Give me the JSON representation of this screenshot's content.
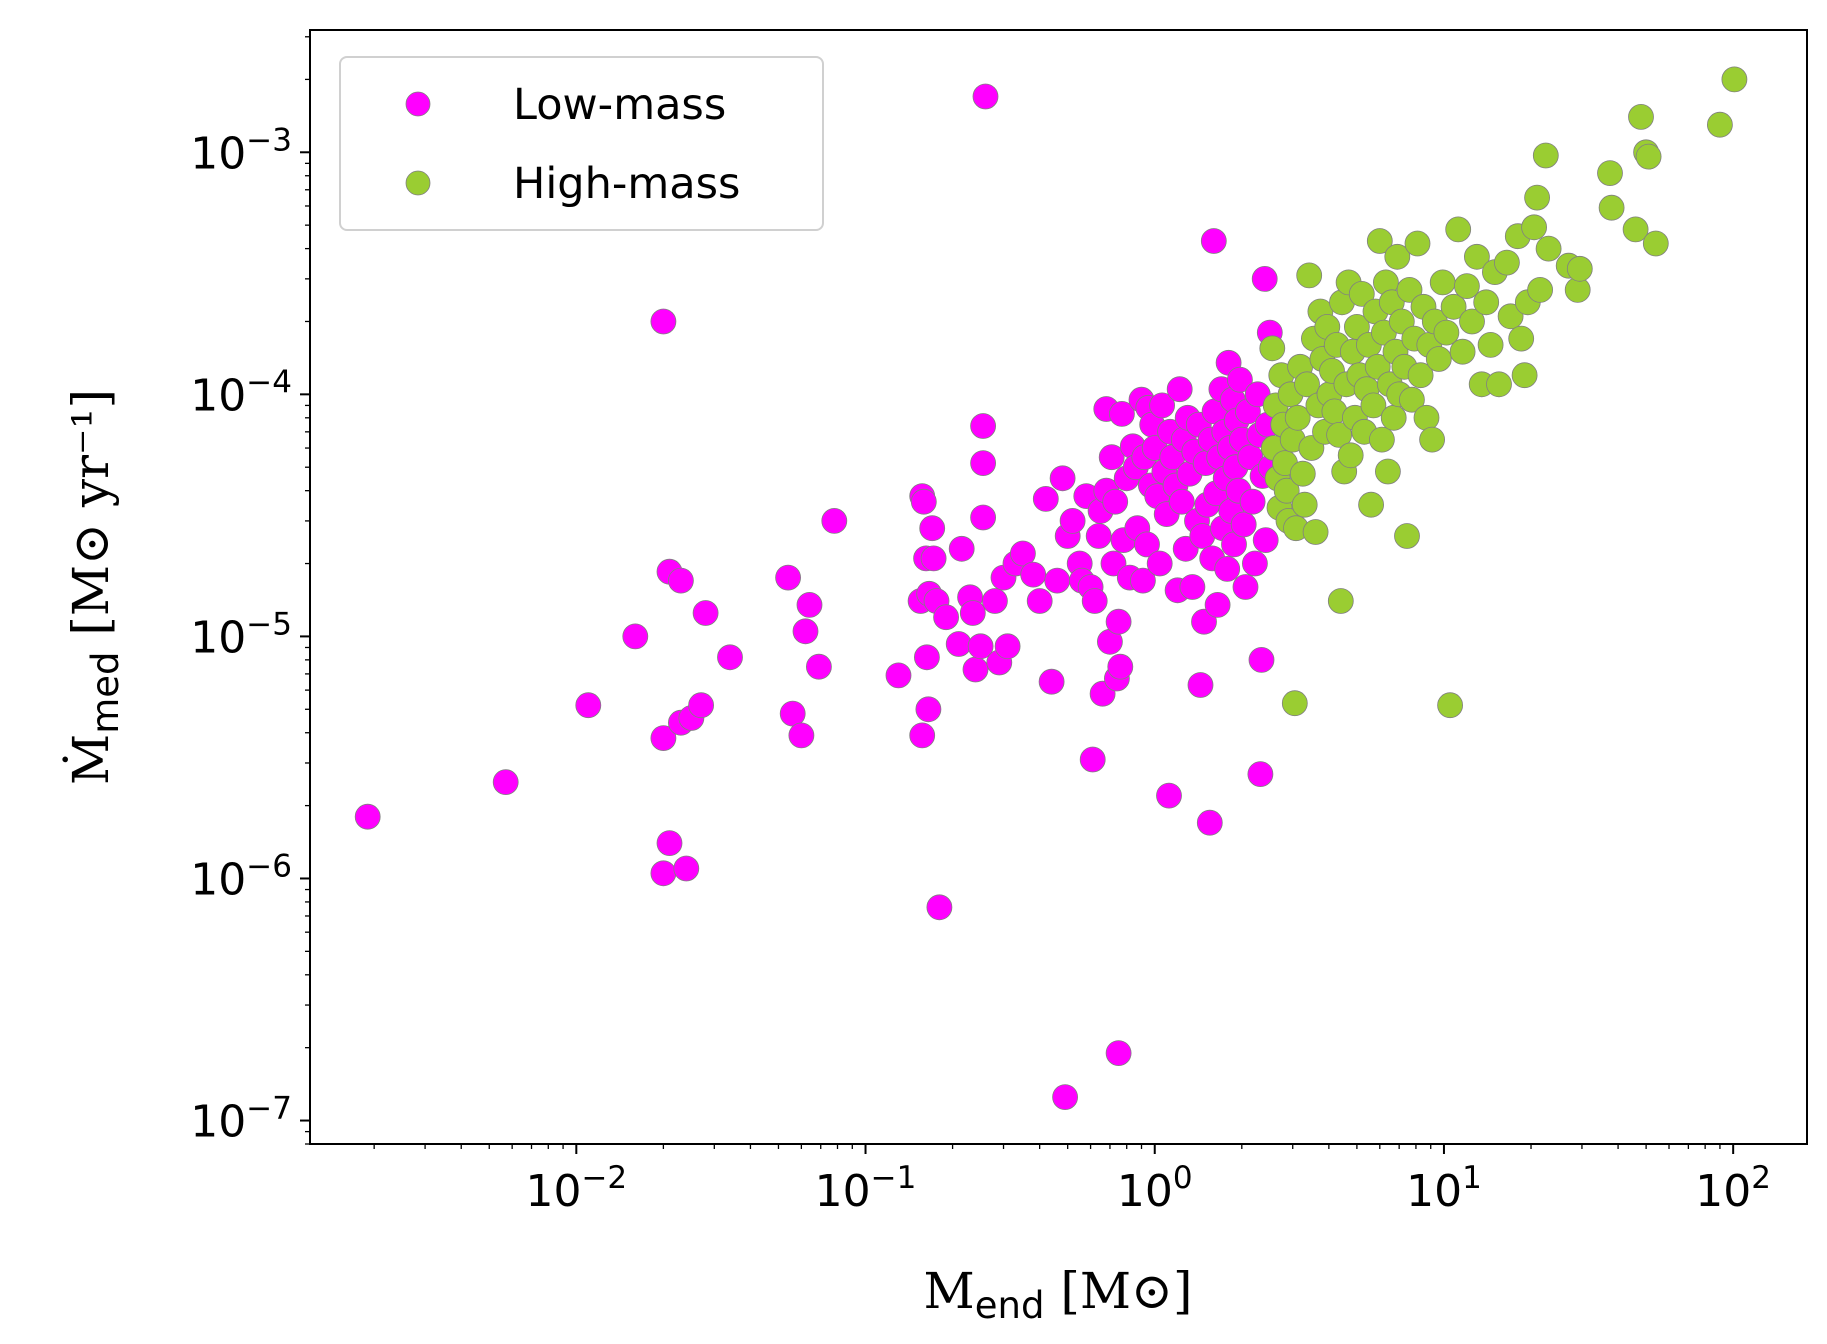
{
  "chart_data": {
    "type": "scatter",
    "x_scale": "log",
    "y_scale": "log",
    "xlim": [
      0.0012,
      180
    ],
    "ylim": [
      8e-08,
      0.0032
    ],
    "xlabel": {
      "main": "M",
      "sub": "end",
      "unit": " [M⊙]"
    },
    "ylabel": {
      "main": "Ṁ",
      "sub": "med",
      "unit": " [M⊙ yr⁻¹]"
    },
    "x_ticks": [
      {
        "base": "10",
        "exp": "−2",
        "value": 0.01
      },
      {
        "base": "10",
        "exp": "−1",
        "value": 0.1
      },
      {
        "base": "10",
        "exp": "0",
        "value": 1
      },
      {
        "base": "10",
        "exp": "1",
        "value": 10
      },
      {
        "base": "10",
        "exp": "2",
        "value": 100
      }
    ],
    "y_ticks": [
      {
        "base": "10",
        "exp": "−7",
        "value": 1e-07
      },
      {
        "base": "10",
        "exp": "−6",
        "value": 1e-06
      },
      {
        "base": "10",
        "exp": "−5",
        "value": 1e-05
      },
      {
        "base": "10",
        "exp": "−4",
        "value": 0.0001
      },
      {
        "base": "10",
        "exp": "−3",
        "value": 0.001
      }
    ],
    "grid": false,
    "legend_position": "top-left",
    "series": [
      {
        "name": "Low-mass",
        "color": "#ff00ff",
        "points": [
          [
            0.0019,
            1.8e-06
          ],
          [
            0.0057,
            2.5e-06
          ],
          [
            0.011,
            5.2e-06
          ],
          [
            0.016,
            1e-05
          ],
          [
            0.02,
            0.0002
          ],
          [
            0.02,
            3.8e-06
          ],
          [
            0.02,
            1.05e-06
          ],
          [
            0.021,
            1.4e-06
          ],
          [
            0.021,
            1.85e-05
          ],
          [
            0.023,
            1.7e-05
          ],
          [
            0.023,
            4.4e-06
          ],
          [
            0.024,
            1.1e-06
          ],
          [
            0.025,
            4.6e-06
          ],
          [
            0.027,
            5.2e-06
          ],
          [
            0.028,
            1.25e-05
          ],
          [
            0.034,
            8.2e-06
          ],
          [
            0.054,
            1.75e-05
          ],
          [
            0.056,
            4.8e-06
          ],
          [
            0.06,
            3.9e-06
          ],
          [
            0.062,
            1.05e-05
          ],
          [
            0.064,
            1.35e-05
          ],
          [
            0.069,
            7.5e-06
          ],
          [
            0.078,
            3e-05
          ],
          [
            0.13,
            6.9e-06
          ],
          [
            0.155,
            1.4e-05
          ],
          [
            0.157,
            3.8e-05
          ],
          [
            0.157,
            3.9e-06
          ],
          [
            0.159,
            3.6e-05
          ],
          [
            0.162,
            2.1e-05
          ],
          [
            0.163,
            8.2e-06
          ],
          [
            0.165,
            5e-06
          ],
          [
            0.166,
            1.5e-05
          ],
          [
            0.17,
            2.8e-05
          ],
          [
            0.172,
            2.1e-05
          ],
          [
            0.176,
            1.4e-05
          ],
          [
            0.18,
            7.6e-07
          ],
          [
            0.19,
            1.2e-05
          ],
          [
            0.21,
            9.3e-06
          ],
          [
            0.215,
            2.3e-05
          ],
          [
            0.23,
            1.45e-05
          ],
          [
            0.235,
            1.25e-05
          ],
          [
            0.24,
            7.3e-06
          ],
          [
            0.25,
            9.1e-06
          ],
          [
            0.255,
            3.1e-05
          ],
          [
            0.255,
            5.2e-05
          ],
          [
            0.255,
            7.4e-05
          ],
          [
            0.26,
            0.0017
          ],
          [
            0.28,
            1.4e-05
          ],
          [
            0.29,
            7.8e-06
          ],
          [
            0.3,
            1.75e-05
          ],
          [
            0.31,
            9.1e-06
          ],
          [
            0.33,
            2e-05
          ],
          [
            0.35,
            2.2e-05
          ],
          [
            0.38,
            1.8e-05
          ],
          [
            0.4,
            1.4e-05
          ],
          [
            0.42,
            3.7e-05
          ],
          [
            0.44,
            6.5e-06
          ],
          [
            0.46,
            1.7e-05
          ],
          [
            0.48,
            4.5e-05
          ],
          [
            0.49,
            1.25e-07
          ],
          [
            0.5,
            2.6e-05
          ],
          [
            0.52,
            3e-05
          ],
          [
            0.55,
            2e-05
          ],
          [
            0.56,
            1.7e-05
          ],
          [
            0.58,
            3.8e-05
          ],
          [
            0.6,
            1.6e-05
          ],
          [
            0.61,
            3.1e-06
          ],
          [
            0.62,
            1.4e-05
          ],
          [
            0.64,
            2.6e-05
          ],
          [
            0.65,
            3.3e-05
          ],
          [
            0.66,
            5.8e-06
          ],
          [
            0.68,
            4e-05
          ],
          [
            0.68,
            8.7e-05
          ],
          [
            0.7,
            9.5e-06
          ],
          [
            0.71,
            5.5e-05
          ],
          [
            0.72,
            2e-05
          ],
          [
            0.73,
            3.6e-05
          ],
          [
            0.74,
            6.7e-06
          ],
          [
            0.75,
            1.9e-07
          ],
          [
            0.75,
            1.15e-05
          ],
          [
            0.76,
            7.5e-06
          ],
          [
            0.77,
            8.3e-05
          ],
          [
            0.78,
            2.5e-05
          ],
          [
            0.8,
            4.5e-05
          ],
          [
            0.82,
            1.75e-05
          ],
          [
            0.84,
            6.1e-05
          ],
          [
            0.86,
            5e-05
          ],
          [
            0.87,
            2.8e-05
          ],
          [
            0.9,
            9.5e-05
          ],
          [
            0.91,
            1.7e-05
          ],
          [
            0.92,
            5.5e-05
          ],
          [
            0.94,
            2.4e-05
          ],
          [
            0.95,
            8.8e-05
          ],
          [
            0.97,
            4.2e-05
          ],
          [
            0.98,
            7.5e-05
          ],
          [
            1.0,
            6e-05
          ],
          [
            1.02,
            3.8e-05
          ],
          [
            1.04,
            2e-05
          ],
          [
            1.06,
            9e-05
          ],
          [
            1.08,
            4.8e-05
          ],
          [
            1.1,
            3.2e-05
          ],
          [
            1.12,
            2.2e-06
          ],
          [
            1.13,
            7e-05
          ],
          [
            1.15,
            5.5e-05
          ],
          [
            1.18,
            4.2e-05
          ],
          [
            1.2,
            1.55e-05
          ],
          [
            1.22,
            0.000105
          ],
          [
            1.24,
            3.6e-05
          ],
          [
            1.26,
            6.5e-05
          ],
          [
            1.28,
            2.3e-05
          ],
          [
            1.3,
            8e-05
          ],
          [
            1.32,
            4.7e-05
          ],
          [
            1.35,
            1.6e-05
          ],
          [
            1.37,
            5.8e-05
          ],
          [
            1.4,
            3e-05
          ],
          [
            1.42,
            7.5e-05
          ],
          [
            1.44,
            6.3e-06
          ],
          [
            1.46,
            2.6e-05
          ],
          [
            1.48,
            1.15e-05
          ],
          [
            1.5,
            5.2e-05
          ],
          [
            1.52,
            3.5e-05
          ],
          [
            1.55,
            1.7e-06
          ],
          [
            1.56,
            6.5e-05
          ],
          [
            1.58,
            2.1e-05
          ],
          [
            1.6,
            0.00043
          ],
          [
            1.61,
            8.5e-05
          ],
          [
            1.63,
            3.9e-05
          ],
          [
            1.65,
            1.35e-05
          ],
          [
            1.67,
            5.5e-05
          ],
          [
            1.7,
            0.000105
          ],
          [
            1.72,
            2.8e-05
          ],
          [
            1.74,
            7e-05
          ],
          [
            1.76,
            4.5e-05
          ],
          [
            1.78,
            1.9e-05
          ],
          [
            1.8,
            0.000135
          ],
          [
            1.82,
            6e-05
          ],
          [
            1.84,
            3.3e-05
          ],
          [
            1.86,
            9.5e-05
          ],
          [
            1.88,
            2.4e-05
          ],
          [
            1.9,
            5e-05
          ],
          [
            1.92,
            7.8e-05
          ],
          [
            1.95,
            4e-05
          ],
          [
            1.97,
            0.000115
          ],
          [
            2.0,
            6.5e-05
          ],
          [
            2.03,
            2.9e-05
          ],
          [
            2.06,
            1.6e-05
          ],
          [
            2.1,
            8.5e-05
          ],
          [
            2.14,
            5.5e-05
          ],
          [
            2.18,
            3.6e-05
          ],
          [
            2.22,
            2e-05
          ],
          [
            2.27,
            0.0001
          ],
          [
            2.3,
            6.8e-05
          ],
          [
            2.32,
            2.7e-06
          ],
          [
            2.34,
            8e-06
          ],
          [
            2.36,
            4.6e-05
          ],
          [
            2.4,
            0.0003
          ],
          [
            2.42,
            2.5e-05
          ],
          [
            2.46,
            7.5e-05
          ],
          [
            2.5,
            0.00018
          ],
          [
            2.52,
            5e-05
          ]
        ]
      },
      {
        "name": "High-mass",
        "color": "#9acd32",
        "points": [
          [
            2.55,
            0.000155
          ],
          [
            2.58,
            6e-05
          ],
          [
            2.62,
            9e-05
          ],
          [
            2.66,
            4.5e-05
          ],
          [
            2.7,
            3.4e-05
          ],
          [
            2.74,
            0.00012
          ],
          [
            2.78,
            7.5e-05
          ],
          [
            2.82,
            5.2e-05
          ],
          [
            2.86,
            4e-05
          ],
          [
            2.9,
            3e-05
          ],
          [
            2.95,
            0.0001
          ],
          [
            3.0,
            6.5e-05
          ],
          [
            3.05,
            5.3e-06
          ],
          [
            3.08,
            2.8e-05
          ],
          [
            3.12,
            8e-05
          ],
          [
            3.18,
            0.00013
          ],
          [
            3.25,
            4.7e-05
          ],
          [
            3.3,
            3.5e-05
          ],
          [
            3.36,
            0.00011
          ],
          [
            3.42,
            0.00031
          ],
          [
            3.48,
            6e-05
          ],
          [
            3.55,
            0.00017
          ],
          [
            3.6,
            2.7e-05
          ],
          [
            3.68,
            9e-05
          ],
          [
            3.74,
            0.00022
          ],
          [
            3.8,
            0.00014
          ],
          [
            3.88,
            7e-05
          ],
          [
            3.95,
            0.00019
          ],
          [
            4.02,
            0.0001
          ],
          [
            4.1,
            0.000125
          ],
          [
            4.18,
            8.5e-05
          ],
          [
            4.26,
            0.00016
          ],
          [
            4.34,
            6.8e-05
          ],
          [
            4.4,
            1.4e-05
          ],
          [
            4.44,
            0.00024
          ],
          [
            4.52,
            4.8e-05
          ],
          [
            4.6,
            0.00011
          ],
          [
            4.68,
            0.00029
          ],
          [
            4.76,
            5.6e-05
          ],
          [
            4.84,
            0.00015
          ],
          [
            4.92,
            8e-05
          ],
          [
            5.0,
            0.00019
          ],
          [
            5.1,
            0.00012
          ],
          [
            5.2,
            0.00026
          ],
          [
            5.3,
            7e-05
          ],
          [
            5.4,
            0.000105
          ],
          [
            5.5,
            0.00016
          ],
          [
            5.6,
            3.5e-05
          ],
          [
            5.7,
            9e-05
          ],
          [
            5.8,
            0.00022
          ],
          [
            5.9,
            0.00013
          ],
          [
            6.0,
            0.00043
          ],
          [
            6.1,
            6.5e-05
          ],
          [
            6.2,
            0.00018
          ],
          [
            6.3,
            0.00029
          ],
          [
            6.4,
            4.8e-05
          ],
          [
            6.5,
            0.00011
          ],
          [
            6.6,
            0.00024
          ],
          [
            6.7,
            8e-05
          ],
          [
            6.8,
            0.00015
          ],
          [
            6.9,
            0.00037
          ],
          [
            7.0,
            0.0001
          ],
          [
            7.15,
            0.0002
          ],
          [
            7.3,
            0.00013
          ],
          [
            7.45,
            2.6e-05
          ],
          [
            7.6,
            0.00027
          ],
          [
            7.75,
            9.5e-05
          ],
          [
            7.9,
            0.00017
          ],
          [
            8.1,
            0.00042
          ],
          [
            8.3,
            0.00012
          ],
          [
            8.5,
            0.00023
          ],
          [
            8.7,
            8e-05
          ],
          [
            8.9,
            0.00016
          ],
          [
            9.1,
            6.5e-05
          ],
          [
            9.3,
            0.0002
          ],
          [
            9.6,
            0.00014
          ],
          [
            9.9,
            0.00029
          ],
          [
            10.2,
            0.00018
          ],
          [
            10.5,
            5.2e-06
          ],
          [
            10.8,
            0.00023
          ],
          [
            11.2,
            0.00048
          ],
          [
            11.6,
            0.00015
          ],
          [
            12.0,
            0.00028
          ],
          [
            12.5,
            0.0002
          ],
          [
            13.0,
            0.00037
          ],
          [
            13.5,
            0.00011
          ],
          [
            14.0,
            0.00024
          ],
          [
            14.5,
            0.00016
          ],
          [
            15.0,
            0.00032
          ],
          [
            15.5,
            0.00011
          ],
          [
            16.5,
            0.00035
          ],
          [
            17.0,
            0.00021
          ],
          [
            18.0,
            0.00045
          ],
          [
            18.5,
            0.00017
          ],
          [
            19.0,
            0.00012
          ],
          [
            19.5,
            0.00024
          ],
          [
            20.5,
            0.00049
          ],
          [
            21.0,
            0.00065
          ],
          [
            21.5,
            0.00027
          ],
          [
            22.5,
            0.00097
          ],
          [
            23.0,
            0.0004
          ],
          [
            27.0,
            0.00034
          ],
          [
            29.0,
            0.00027
          ],
          [
            29.5,
            0.00033
          ],
          [
            37.5,
            0.00082
          ],
          [
            38.0,
            0.00059
          ],
          [
            46.0,
            0.00048
          ],
          [
            48.0,
            0.0014
          ],
          [
            50.0,
            0.001
          ],
          [
            51.0,
            0.00096
          ],
          [
            54.0,
            0.00042
          ],
          [
            90.0,
            0.0013
          ],
          [
            101.0,
            0.002
          ]
        ]
      }
    ]
  }
}
